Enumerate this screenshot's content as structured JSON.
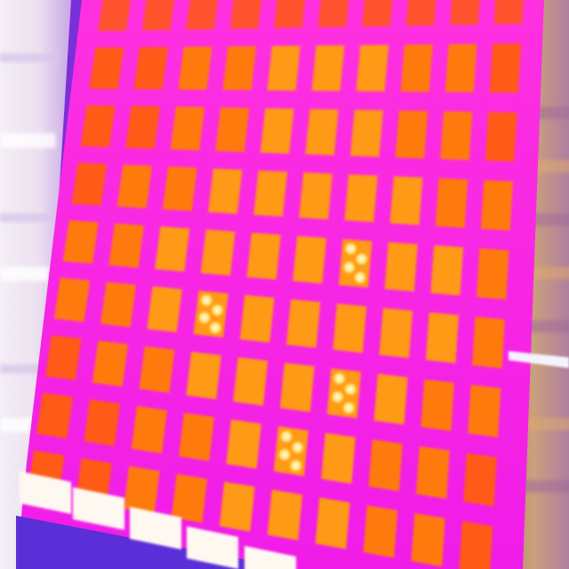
{
  "image": {
    "subject": "thermal-camera-image-of-solar-panel",
    "palette": {
      "cold_background": "#6a2bd0",
      "left_wall_light": "#eee6f2",
      "frame_magenta": "#ff22e6",
      "cell_warm": "#ff5a12",
      "cell_mid": "#ff7a10",
      "cell_hot": "#ff9a14",
      "hotspot": "#fff2b0",
      "right_strip_tan": "#c69a78",
      "bottom_bar_white": "#fff8f0"
    },
    "hotspot_cell_count": 4,
    "grid": {
      "rows": 9,
      "columns": 10
    }
  }
}
